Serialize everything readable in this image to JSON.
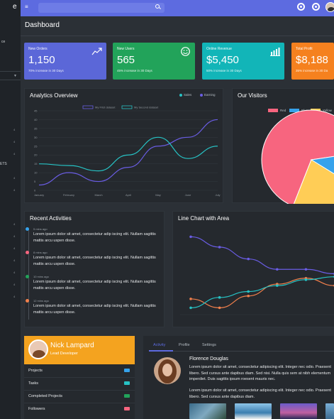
{
  "sidebar": {
    "logo": "e",
    "text": "ce",
    "nums": [
      "4",
      "4",
      "4",
      "4",
      "4",
      "4",
      "4",
      "4",
      "4",
      "4",
      "4",
      "4"
    ],
    "label": "ETS"
  },
  "topbar": {
    "search_placeholder": ""
  },
  "page": {
    "title": "Dashboard"
  },
  "stats": [
    {
      "label": "New Orders",
      "value": "1,150",
      "sub": "70% increase in 30 Days",
      "color": "#5b67d8",
      "icon": "trend-icon"
    },
    {
      "label": "New Users",
      "value": "565",
      "sub": "45% increase in 30 Days",
      "color": "#22a35a",
      "icon": "smile-icon"
    },
    {
      "label": "Online Revenue",
      "value": "$5,450",
      "sub": "50% increase in 30 Days",
      "color": "#12b5b8",
      "icon": "bar-chart-icon"
    },
    {
      "label": "Total Profit",
      "value": "$8,188",
      "sub": "35% increase in 30 Da",
      "color": "#f5811f",
      "icon": "profit-icon"
    }
  ],
  "analytics": {
    "title": "Analytics Overview",
    "legend": [
      {
        "name": "Sales",
        "color": "#27c2c4"
      },
      {
        "name": "Earning",
        "color": "#6a5de4"
      }
    ],
    "inner_legend": [
      {
        "name": "My First dataset",
        "color": "#6a5de4"
      },
      {
        "name": "My Second dataset",
        "color": "#27c2c4"
      }
    ]
  },
  "chart_data": [
    {
      "type": "line",
      "title": "Analytics Overview",
      "x": [
        "January",
        "February",
        "March",
        "April",
        "May",
        "June",
        "July"
      ],
      "ylim": [
        0,
        45
      ],
      "yticks": [
        "0",
        "5",
        "10",
        "15",
        "20",
        "25",
        "30",
        "35",
        "40",
        "45"
      ],
      "series": [
        {
          "name": "My First dataset",
          "color": "#6a5de4",
          "values": [
            3,
            10,
            5,
            13,
            25,
            30,
            40
          ]
        },
        {
          "name": "My Second dataset",
          "color": "#27c2c4",
          "values": [
            15,
            14,
            11,
            20,
            30,
            18,
            25
          ]
        }
      ]
    },
    {
      "type": "pie",
      "title": "Our Visitors",
      "labels": [
        "Red",
        "Blue",
        "Yellow"
      ],
      "colors": [
        "#f7657f",
        "#36a2eb",
        "#ffcd56"
      ],
      "values": [
        300,
        50,
        100
      ]
    },
    {
      "type": "area",
      "title": "Line Chart with Area",
      "series": [
        {
          "color": "#6a5de4",
          "values": [
            55,
            48,
            40,
            33,
            33,
            30
          ]
        },
        {
          "color": "#f2804c",
          "values": [
            13,
            7,
            15,
            23,
            27,
            22
          ]
        },
        {
          "color": "#27c2c4",
          "values": [
            7,
            14,
            18,
            22,
            26,
            28
          ]
        }
      ]
    }
  ],
  "visitors": {
    "title": "Our Visitors",
    "legend": [
      {
        "name": "Red",
        "color": "#f7657f"
      },
      {
        "name": "Blue",
        "color": "#36a2eb"
      },
      {
        "name": "Yellow",
        "color": "#ffcd56"
      }
    ]
  },
  "activities": {
    "title": "Recent Activities",
    "items": [
      {
        "time": "5 mins ago",
        "text": "Lorem ipsum dolor sit amet, consectetur adip iscing elit. Nullam sagittis mattis arcu uspen disse.",
        "color": "#36a2eb"
      },
      {
        "time": "8 mins ago",
        "text": "Lorem ipsum dolor sit amet, consectetur adip iscing elit. Nullam sagittis mattis arcu uspen disse.",
        "color": "#f7657f"
      },
      {
        "time": "10 mins ago",
        "text": "Lorem ipsum dolor sit amet, consectetur adip iscing elit. Nullam sagittis mattis arcu uspen disse.",
        "color": "#22a35a"
      },
      {
        "time": "12 mins ago",
        "text": "Lorem ipsum dolor sit amet, consectetur adip iscing elit. Nullam sagittis mattis arcu uspen disse.",
        "color": "#f2804c"
      }
    ]
  },
  "area_chart": {
    "title": "Line Chart with Area"
  },
  "profile": {
    "name": "Nick Lampard",
    "role": "Lead Developer",
    "items": [
      {
        "label": "Projects",
        "color": "#36a2eb"
      },
      {
        "label": "Tasks",
        "color": "#27c2c4"
      },
      {
        "label": "Completed Projects",
        "color": "#22a35a"
      },
      {
        "label": "Followers",
        "color": "#f7657f"
      }
    ]
  },
  "feed": {
    "tabs": [
      "Activity",
      "Profile",
      "Settings"
    ],
    "name": "Florence Douglas",
    "para1": "Lorem ipsum dolor sit amet, consectetur adipiscing elit. Integer nec odio. Praesent libero. Sed cursus ante dapibus diam. Sed nisi. Nulla quis sem at nibh elementum imperdiet. Duis sagittis ipsum roesent mauris nec.",
    "para2": "Lorem ipsum dolor sit amet, consectetur adipiscing elit. Integer nec odio. Praesent libero. Sed cursus ante dapibus diam."
  }
}
